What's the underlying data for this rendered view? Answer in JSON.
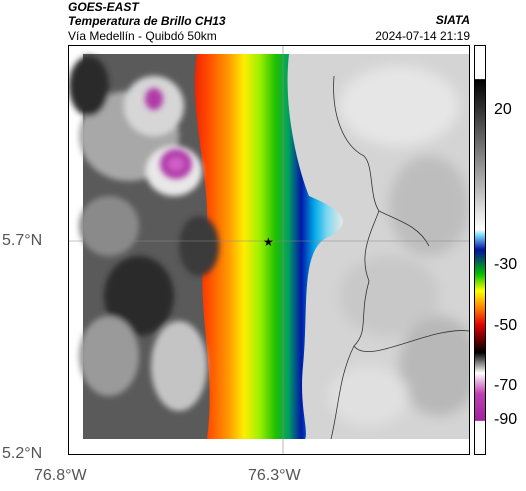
{
  "header": {
    "satellite": "GOES-EAST",
    "product": "Temperatura de Brillo CH13",
    "brand": "SIATA",
    "region": "Vía Medellín - Quibdó 50km",
    "timestamp": "2024-07-14 21:19"
  },
  "axes": {
    "lat_ticks": [
      "5.7°N",
      "5.2°N"
    ],
    "lon_ticks": [
      "76.8°W",
      "76.3°W"
    ]
  },
  "colorbar": {
    "ticks": [
      "20",
      "-30",
      "-50",
      "-70",
      "-90"
    ]
  },
  "marker": {
    "icon": "star-icon",
    "color": "#000000"
  },
  "colors": {
    "cold_magenta": "#b03aa8",
    "red_band": "#cc0000",
    "green_band": "#22cc22",
    "blue_band": "#1030b0",
    "clear_gray": "#d8d8d8"
  }
}
